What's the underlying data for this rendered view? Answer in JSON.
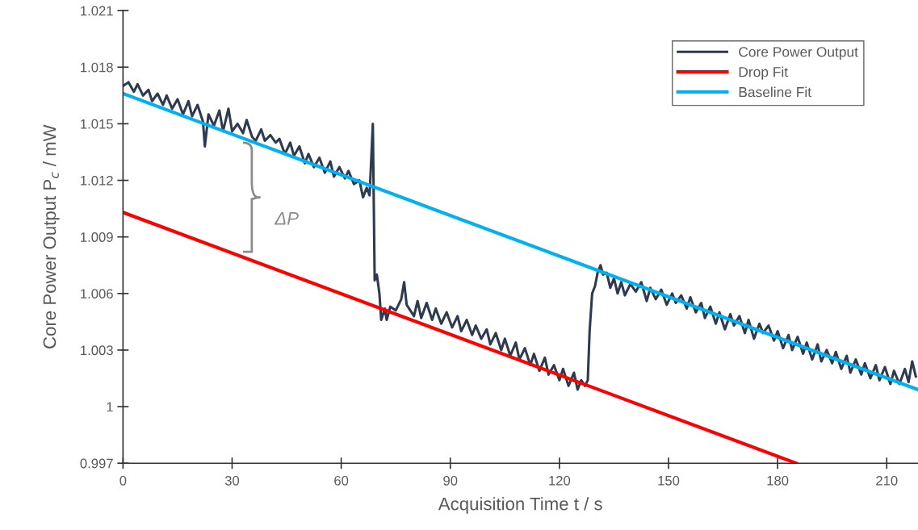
{
  "chart_data": {
    "type": "line",
    "xlabel": "Acquisition Time t / s",
    "ylabel": "Core Power Output P$_{c}$ / mW",
    "xlim": [
      0,
      218.6
    ],
    "ylim": [
      0.997,
      1.021
    ],
    "xticks": [
      0,
      30,
      60,
      90,
      120,
      150,
      180,
      210
    ],
    "yticks": [
      0.997,
      1,
      1.003,
      1.006,
      1.009,
      1.012,
      1.015,
      1.018,
      1.021
    ],
    "grid": false,
    "legend": "top right",
    "marker": "none",
    "line_style": "solid",
    "annotations": [
      "ΔP"
    ],
    "series": [
      {
        "name": "Core Power Output",
        "color": "#2e3a50",
        "x": [
          0,
          1.5,
          3,
          4,
          5.5,
          7,
          8,
          9.5,
          11,
          12,
          13.5,
          15,
          16.5,
          18,
          19,
          20.5,
          22,
          22.5,
          23.5,
          25,
          26.5,
          27.5,
          29,
          30,
          31.5,
          33,
          34,
          35.5,
          36.5,
          38,
          39,
          40.5,
          42,
          43,
          44.5,
          46,
          47,
          48.5,
          50,
          51,
          52.5,
          54,
          55.5,
          57,
          58,
          59.5,
          61,
          62,
          63.5,
          65,
          66,
          67,
          67.8,
          68.7,
          69.2,
          69.8,
          70.5,
          71,
          72,
          72.5,
          73.5,
          75,
          76.5,
          77.3,
          78,
          80,
          81,
          82,
          83.5,
          85,
          86,
          87.5,
          89,
          90.5,
          92,
          93,
          94.5,
          96,
          97,
          98.5,
          100,
          101,
          102.5,
          104,
          105,
          106.5,
          108,
          109,
          110.5,
          112,
          113,
          114.5,
          116,
          117,
          118.5,
          120,
          121,
          122.5,
          124,
          125,
          126,
          127,
          127.8,
          128.3,
          129,
          129.8,
          130.5,
          131.3,
          132,
          133,
          134,
          135,
          136,
          137,
          138,
          139.5,
          141,
          142.5,
          144,
          145,
          146.5,
          148,
          149.5,
          151,
          152,
          153.5,
          155,
          156,
          157.5,
          159,
          160,
          161.5,
          163,
          164,
          165.5,
          167,
          168,
          169.5,
          171,
          172,
          173.5,
          175,
          176,
          177.5,
          179,
          180,
          181.5,
          183,
          184,
          185.5,
          187,
          188,
          189.5,
          191,
          192,
          193.5,
          195,
          196,
          197.5,
          199,
          200,
          201.5,
          203,
          204,
          205.5,
          207,
          208,
          209.5,
          211,
          212,
          213.5,
          215,
          216,
          217,
          218
        ],
        "values": [
          1.017,
          1.0172,
          1.0167,
          1.0171,
          1.0165,
          1.0168,
          1.0162,
          1.0166,
          1.016,
          1.0165,
          1.0158,
          1.0163,
          1.0155,
          1.0162,
          1.0154,
          1.016,
          1.0151,
          1.0138,
          1.0155,
          1.0149,
          1.0157,
          1.0146,
          1.0158,
          1.0146,
          1.015,
          1.0145,
          1.0152,
          1.0143,
          1.0141,
          1.0147,
          1.0141,
          1.0144,
          1.014,
          1.0142,
          1.0134,
          1.014,
          1.0133,
          1.0138,
          1.0129,
          1.0134,
          1.0127,
          1.0132,
          1.0124,
          1.013,
          1.0122,
          1.0127,
          1.0121,
          1.0125,
          1.0118,
          1.012,
          1.0111,
          1.0116,
          1.0112,
          1.015,
          1.0067,
          1.007,
          1.006,
          1.0046,
          1.0052,
          1.0046,
          1.0053,
          1.0051,
          1.0057,
          1.0066,
          1.0054,
          1.0048,
          1.0056,
          1.0047,
          1.0055,
          1.0046,
          1.0052,
          1.0044,
          1.005,
          1.0042,
          1.0048,
          1.004,
          1.0046,
          1.0038,
          1.0043,
          1.0036,
          1.0041,
          1.0033,
          1.0039,
          1.003,
          1.0036,
          1.0027,
          1.0034,
          1.0025,
          1.0031,
          1.0022,
          1.0028,
          1.0019,
          1.0026,
          1.0017,
          1.0022,
          1.0014,
          1.002,
          1.0011,
          1.0018,
          1.0009,
          1.0014,
          1.0011,
          1.0014,
          1.004,
          1.006,
          1.0064,
          1.0071,
          1.0075,
          1.007,
          1.0071,
          1.0063,
          1.0068,
          1.006,
          1.0066,
          1.0059,
          1.0065,
          1.0061,
          1.0066,
          1.0056,
          1.0063,
          1.0057,
          1.0062,
          1.0054,
          1.006,
          1.0055,
          1.0059,
          1.0052,
          1.0058,
          1.005,
          1.0055,
          1.0047,
          1.0053,
          1.0044,
          1.005,
          1.0041,
          1.0049,
          1.0043,
          1.0048,
          1.0039,
          1.0046,
          1.0036,
          1.0044,
          1.0039,
          1.0043,
          1.0035,
          1.004,
          1.0031,
          1.0038,
          1.003,
          1.0037,
          1.0028,
          1.0034,
          1.0025,
          1.0033,
          1.0024,
          1.003,
          1.0023,
          1.0029,
          1.002,
          1.0027,
          1.0018,
          1.0025,
          1.0017,
          1.0023,
          1.0015,
          1.0022,
          1.0014,
          1.0021,
          1.0012,
          1.0019,
          1.0012,
          1.002,
          1.0013,
          1.0024,
          1.0016
        ]
      },
      {
        "name": "Drop Fit",
        "color": "#ff0000",
        "x": [
          0,
          185.1
        ],
        "values": [
          1.0103,
          0.997
        ]
      },
      {
        "name": "Baseline Fit",
        "color": "#00b0f0",
        "x": [
          0,
          218.6
        ],
        "values": [
          1.0166,
          1.0009
        ]
      }
    ]
  }
}
